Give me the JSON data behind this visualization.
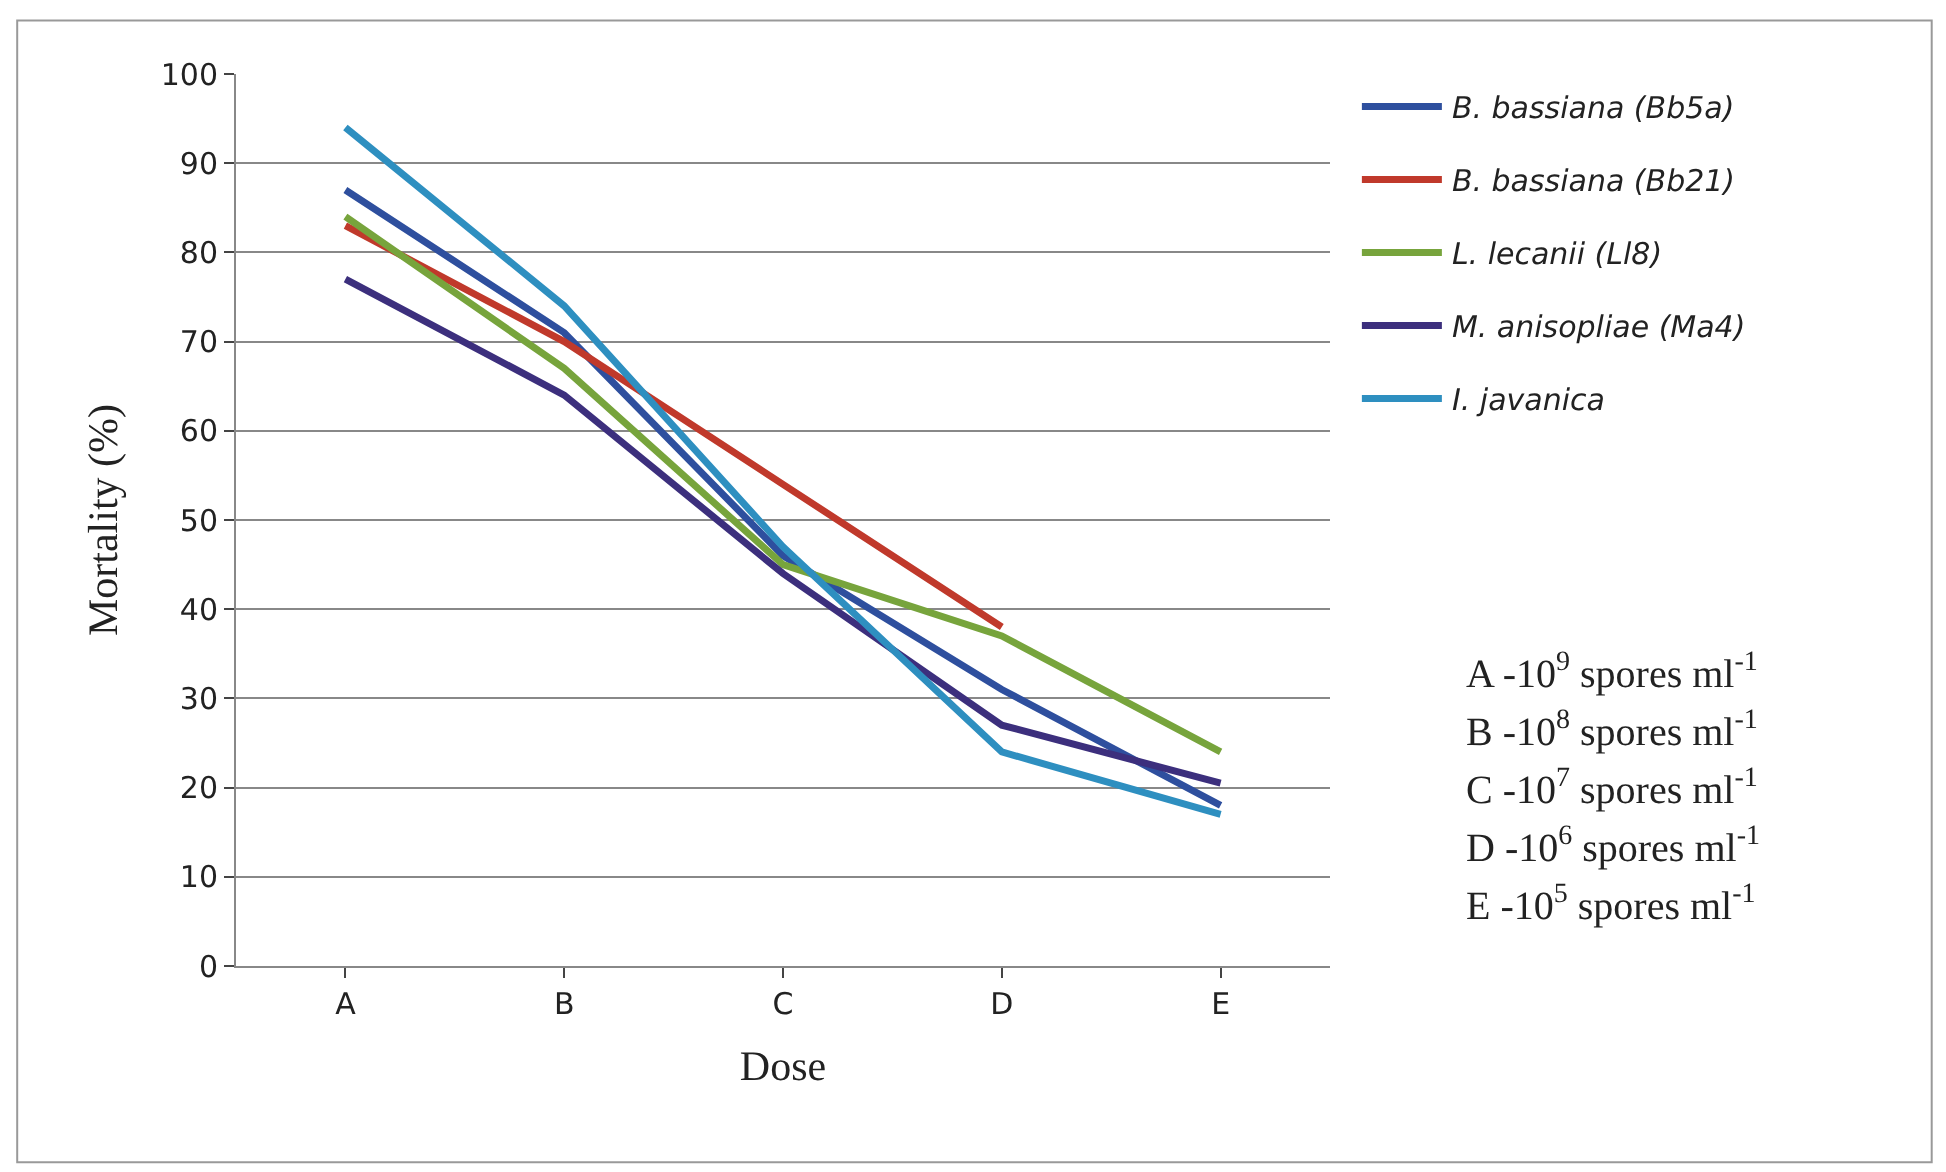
{
  "chart_data": {
    "type": "line",
    "xlabel": "Dose",
    "ylabel": "Mortality (%)",
    "categories": [
      "A",
      "B",
      "C",
      "D",
      "E"
    ],
    "series": [
      {
        "name": "B. bassiana (Bb5a)",
        "color": "#2e4f9e",
        "values": [
          87,
          71,
          46,
          31,
          18
        ]
      },
      {
        "name": "B. bassiana (Bb21)",
        "color": "#c0392b",
        "values": [
          83,
          70,
          54,
          38,
          null
        ]
      },
      {
        "name": "L. lecanii (Ll8)",
        "color": "#77a43c",
        "values": [
          84,
          67,
          45,
          37,
          24
        ]
      },
      {
        "name": "M. anisopliae (Ma4)",
        "color": "#3c2f7d",
        "values": [
          77,
          64,
          44,
          27,
          20.5
        ]
      },
      {
        "name": "I. javanica",
        "color": "#2e8fc0",
        "values": [
          94,
          74,
          47,
          24,
          17
        ]
      }
    ],
    "ylim": [
      0,
      100
    ],
    "yticks": [
      0,
      10,
      20,
      30,
      40,
      50,
      60,
      70,
      80,
      90,
      100
    ],
    "grid": "y",
    "legend": "right",
    "marker": "none",
    "line_style": "solid",
    "annotations": [
      "A -10$^{9}$ spores ml$^{-1}$",
      "B -10$^{8}$ spores ml$^{-1}$",
      "C -10$^{7}$ spores ml$^{-1}$",
      "D -10$^{6}$ spores ml$^{-1}$",
      "E -10$^{5}$ spores ml$^{-1}$"
    ]
  }
}
